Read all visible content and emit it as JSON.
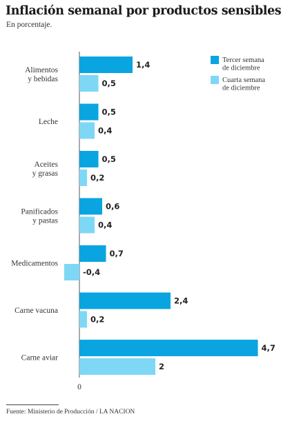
{
  "header": {
    "title": "Inflación semanal por productos sensibles",
    "subtitle": "En porcentaje."
  },
  "footer": {
    "source": "Fuente: Ministerio de Producción / LA NACION"
  },
  "chart_data": {
    "type": "bar",
    "orientation": "horizontal",
    "title": "Inflación semanal por productos sensibles",
    "subtitle": "En porcentaje.",
    "categories": [
      [
        "Alimentos",
        "y bebidas"
      ],
      [
        "Leche"
      ],
      [
        "Aceites",
        "y grasas"
      ],
      [
        "Panificados",
        "y pastas"
      ],
      [
        "Medicamentos"
      ],
      [
        "Carne vacuna"
      ],
      [
        "Carne aviar"
      ]
    ],
    "series": [
      {
        "name": [
          "Tercer semana",
          "de diciembre"
        ],
        "color": "#0aa5e0",
        "values": [
          1.4,
          0.5,
          0.5,
          0.6,
          0.7,
          2.4,
          4.7
        ],
        "labels": [
          "1,4",
          "0,5",
          "0,5",
          "0,6",
          "0,7",
          "2,4",
          "4,7"
        ]
      },
      {
        "name": [
          "Cuarta semana",
          "de diciembre"
        ],
        "color": "#7fd7f6",
        "values": [
          0.5,
          0.4,
          0.2,
          0.4,
          -0.4,
          0.2,
          2
        ],
        "labels": [
          "0,5",
          "0,4",
          "0,2",
          "0,4",
          "-0,4",
          "0,2",
          "2"
        ]
      }
    ],
    "xlim": [
      -0.4,
      4.7
    ],
    "xticks": [
      0
    ],
    "xtick_labels": [
      "0"
    ],
    "legend": "top-right",
    "grid": false,
    "zero_line_color": "#555555"
  }
}
